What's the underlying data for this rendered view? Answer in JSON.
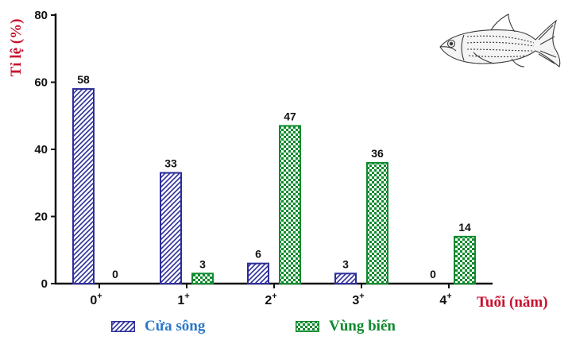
{
  "chart_data": {
    "type": "bar",
    "ylabel": "Tỉ lệ (%)",
    "xlabel": "Tuổi (năm)",
    "ylim": [
      0,
      80
    ],
    "yticks": [
      0,
      20,
      40,
      60,
      80
    ],
    "categories": [
      {
        "base": "0",
        "sup": "+"
      },
      {
        "base": "1",
        "sup": "+"
      },
      {
        "base": "2",
        "sup": "+"
      },
      {
        "base": "3",
        "sup": "+"
      },
      {
        "base": "4",
        "sup": "+"
      }
    ],
    "series": [
      {
        "name": "Cửa sông",
        "values": [
          58,
          33,
          6,
          3,
          0
        ],
        "color": "#2d2d9a",
        "pattern": "diagonal-hatch"
      },
      {
        "name": "Vùng biển",
        "values": [
          0,
          3,
          47,
          36,
          14
        ],
        "color": "#0f8a2e",
        "pattern": "checker"
      }
    ],
    "legend": "bottom",
    "grid": false,
    "label_color": "#c8102e"
  },
  "illustration": {
    "icon": "fish-icon"
  }
}
